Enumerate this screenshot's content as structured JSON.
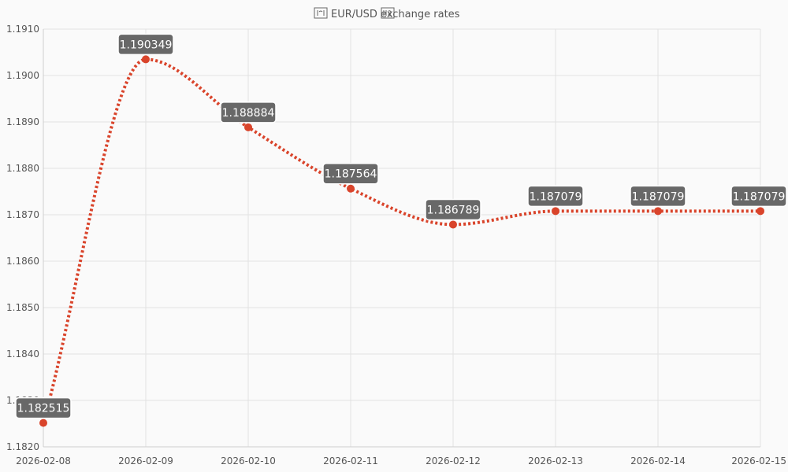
{
  "chart_data": {
    "type": "line",
    "title": "EUR/USD exchange rates",
    "title_icons": [
      "eu-flag-icon",
      "us-flag-icon"
    ],
    "x": [
      "2026-02-08",
      "2026-02-09",
      "2026-02-10",
      "2026-02-11",
      "2026-02-12",
      "2026-02-13",
      "2026-02-14",
      "2026-02-15"
    ],
    "series": [
      {
        "values": [
          1.182515,
          1.190349,
          1.188884,
          1.187564,
          1.186789,
          1.187079,
          1.187079,
          1.187079
        ],
        "data_labels": [
          "1.182515",
          "1.190349",
          "1.188884",
          "1.187564",
          "1.186789",
          "1.187079",
          "1.187079",
          "1.187079"
        ],
        "color": "#d9442b",
        "line_style": "dotted",
        "smooth": true
      }
    ],
    "xlabel": "",
    "ylabel": "",
    "ylim": [
      1.182,
      1.191
    ],
    "y_ticks": [
      1.182,
      1.183,
      1.184,
      1.185,
      1.186,
      1.187,
      1.188,
      1.189,
      1.19,
      1.191
    ],
    "y_tick_labels": [
      "1.1820",
      "1.1830",
      "1.1840",
      "1.1850",
      "1.1860",
      "1.1870",
      "1.1880",
      "1.1890",
      "1.1900",
      "1.1910"
    ],
    "grid": true,
    "legend": "none",
    "colors": {
      "line": "#d9442b",
      "label_background": "#686868",
      "grid": "#e2e2e2",
      "background": "#fafafa"
    }
  }
}
